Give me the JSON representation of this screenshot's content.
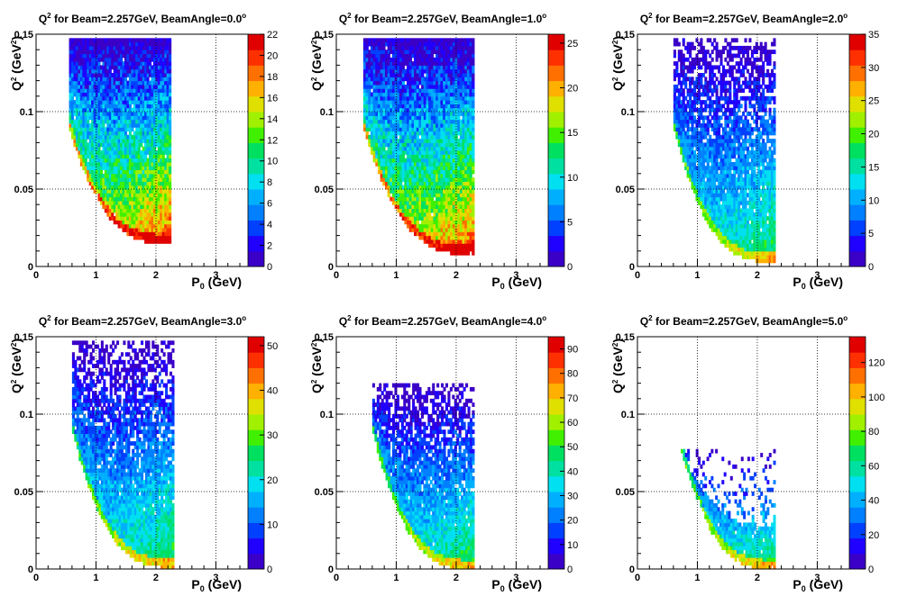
{
  "chart_data": [
    {
      "type": "heatmap",
      "title": "Q² for Beam=2.257GeV, BeamAngle=0.0°",
      "title_parts": {
        "q": "Q",
        "q_sup": "2",
        "text": " for Beam=2.257GeV, BeamAngle=0.0",
        "deg": "o"
      },
      "xlabel": "P₀ (GeV)",
      "ylabel": "Q² (GeV²)",
      "xlim": [
        0,
        3.55
      ],
      "ylim": [
        0,
        0.15
      ],
      "x_ticks": [
        "0",
        "1",
        "2",
        "3"
      ],
      "y_ticks": [
        "0",
        "0.05",
        "0.1",
        "0.15"
      ],
      "z_ticks": [
        "0",
        "2",
        "4",
        "6",
        "8",
        "10",
        "12",
        "14",
        "16",
        "18",
        "20",
        "22"
      ],
      "zlim": [
        0,
        22
      ],
      "grid": true,
      "data_region": {
        "p_min": 0.55,
        "p_max": 2.25,
        "q2_max": 0.148,
        "q2_floor_at_pmax": 0.015
      },
      "fill_character": "dense"
    },
    {
      "type": "heatmap",
      "title": "Q² for Beam=2.257GeV, BeamAngle=1.0°",
      "title_parts": {
        "q": "Q",
        "q_sup": "2",
        "text": " for Beam=2.257GeV, BeamAngle=1.0",
        "deg": "o"
      },
      "xlabel": "P₀ (GeV)",
      "ylabel": "Q² (GeV²)",
      "xlim": [
        0,
        3.55
      ],
      "ylim": [
        0,
        0.15
      ],
      "x_ticks": [
        "0",
        "1",
        "2",
        "3"
      ],
      "y_ticks": [
        "0",
        "0.05",
        "0.1",
        "0.15"
      ],
      "z_ticks": [
        "0",
        "5",
        "10",
        "15",
        "20",
        "25"
      ],
      "zlim": [
        0,
        26
      ],
      "grid": true,
      "data_region": {
        "p_min": 0.45,
        "p_max": 2.3,
        "q2_max": 0.148,
        "q2_floor_at_pmax": 0.008
      },
      "fill_character": "dense"
    },
    {
      "type": "heatmap",
      "title": "Q² for Beam=2.257GeV, BeamAngle=2.0°",
      "title_parts": {
        "q": "Q",
        "q_sup": "2",
        "text": " for Beam=2.257GeV, BeamAngle=2.0",
        "deg": "o"
      },
      "xlabel": "P₀ (GeV)",
      "ylabel": "Q² (GeV²)",
      "xlim": [
        0,
        3.55
      ],
      "ylim": [
        0,
        0.15
      ],
      "x_ticks": [
        "0",
        "1",
        "2",
        "3"
      ],
      "y_ticks": [
        "0",
        "0.05",
        "0.1",
        "0.15"
      ],
      "z_ticks": [
        "0",
        "5",
        "10",
        "15",
        "20",
        "25",
        "30",
        "35"
      ],
      "zlim": [
        0,
        35
      ],
      "grid": true,
      "data_region": {
        "p_min": 0.6,
        "p_max": 2.3,
        "q2_max": 0.148,
        "q2_floor_at_pmax": 0.003
      },
      "fill_character": "sparse-top"
    },
    {
      "type": "heatmap",
      "title": "Q² for Beam=2.257GeV, BeamAngle=3.0°",
      "title_parts": {
        "q": "Q",
        "q_sup": "2",
        "text": " for Beam=2.257GeV, BeamAngle=3.0",
        "deg": "o"
      },
      "xlabel": "P₀ (GeV)",
      "ylabel": "Q² (GeV²)",
      "xlim": [
        0,
        3.55
      ],
      "ylim": [
        0,
        0.15
      ],
      "x_ticks": [
        "0",
        "1",
        "2",
        "3"
      ],
      "y_ticks": [
        "0",
        "0.05",
        "0.1",
        "0.15"
      ],
      "z_ticks": [
        "0",
        "10",
        "20",
        "30",
        "40",
        "50"
      ],
      "zlim": [
        0,
        52
      ],
      "grid": true,
      "data_region": {
        "p_min": 0.6,
        "p_max": 2.3,
        "q2_max": 0.148,
        "q2_floor_at_pmax": 0.001
      },
      "fill_character": "sparse-top"
    },
    {
      "type": "heatmap",
      "title": "Q² for Beam=2.257GeV, BeamAngle=4.0°",
      "title_parts": {
        "q": "Q",
        "q_sup": "2",
        "text": " for Beam=2.257GeV, BeamAngle=4.0",
        "deg": "o"
      },
      "xlabel": "P₀ (GeV)",
      "ylabel": "Q² (GeV²)",
      "xlim": [
        0,
        3.55
      ],
      "ylim": [
        0,
        0.15
      ],
      "x_ticks": [
        "0",
        "1",
        "2",
        "3"
      ],
      "y_ticks": [
        "0",
        "0.05",
        "0.1",
        "0.15"
      ],
      "z_ticks": [
        "0",
        "10",
        "20",
        "30",
        "40",
        "50",
        "60",
        "70",
        "80",
        "90"
      ],
      "zlim": [
        0,
        95
      ],
      "grid": true,
      "data_region": {
        "p_min": 0.6,
        "p_max": 2.3,
        "q2_max": 0.12,
        "q2_floor_at_pmax": 0.0
      },
      "fill_character": "sparse-top"
    },
    {
      "type": "heatmap",
      "title": "Q² for Beam=2.257GeV, BeamAngle=5.0°",
      "title_parts": {
        "q": "Q",
        "q_sup": "2",
        "text": " for Beam=2.257GeV, BeamAngle=5.0",
        "deg": "o"
      },
      "xlabel": "P₀ (GeV)",
      "ylabel": "Q² (GeV²)",
      "xlim": [
        0,
        3.55
      ],
      "ylim": [
        0,
        0.15
      ],
      "x_ticks": [
        "0",
        "1",
        "2",
        "3"
      ],
      "y_ticks": [
        "0",
        "0.05",
        "0.1",
        "0.15"
      ],
      "z_ticks": [
        "0",
        "20",
        "40",
        "60",
        "80",
        "100",
        "120"
      ],
      "zlim": [
        0,
        135
      ],
      "grid": true,
      "data_region": {
        "p_min": 0.65,
        "p_max": 2.3,
        "q2_max": 0.08,
        "q2_floor_at_pmax": 0.0
      },
      "fill_character": "low-band"
    }
  ],
  "shared": {
    "x_axis_label": {
      "main": "P",
      "sub": "0",
      "unit": " (GeV)"
    },
    "y_axis_label": {
      "main": "Q",
      "sup": "2",
      "unit": " (GeV",
      "unit_sup": "2",
      "close": ")"
    }
  },
  "palette": [
    "#3a00c8",
    "#2000ff",
    "#0040ff",
    "#0080ff",
    "#00b0ff",
    "#00e0f0",
    "#00e0a0",
    "#00e060",
    "#40f000",
    "#a0f000",
    "#e0e000",
    "#ffb000",
    "#ff7000",
    "#ff3000",
    "#e00000"
  ]
}
